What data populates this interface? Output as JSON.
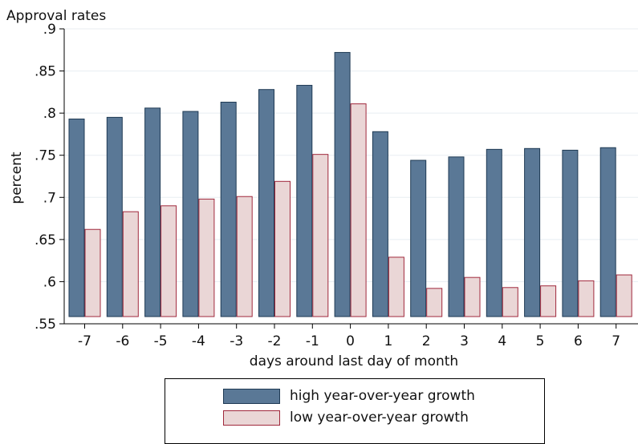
{
  "colors": {
    "high_fill": "#5a7896",
    "high_stroke": "#1f3a54",
    "low_fill": "#ead6d6",
    "low_stroke": "#a0283c",
    "grid": "#e8edf2"
  },
  "chart_data": {
    "type": "bar",
    "title": "Approval rates",
    "xlabel": "days around last day of month",
    "ylabel": "percent",
    "ylim": [
      0.55,
      0.9
    ],
    "yticks": [
      ".55",
      ".6",
      ".65",
      ".7",
      ".75",
      ".8",
      ".85",
      ".9"
    ],
    "categories": [
      "-7",
      "-6",
      "-5",
      "-4",
      "-3",
      "-2",
      "-1",
      "0",
      "1",
      "2",
      "3",
      "4",
      "5",
      "6",
      "7"
    ],
    "grid": true,
    "legend_position": "bottom",
    "series": [
      {
        "name": "high year-over-year growth",
        "values": [
          0.793,
          0.795,
          0.806,
          0.802,
          0.813,
          0.828,
          0.833,
          0.872,
          0.778,
          0.744,
          0.748,
          0.757,
          0.758,
          0.756,
          0.759
        ]
      },
      {
        "name": "low year-over-year growth",
        "values": [
          0.662,
          0.683,
          0.69,
          0.698,
          0.701,
          0.719,
          0.751,
          0.811,
          0.629,
          0.592,
          0.605,
          0.593,
          0.595,
          0.601,
          0.608
        ]
      }
    ]
  }
}
